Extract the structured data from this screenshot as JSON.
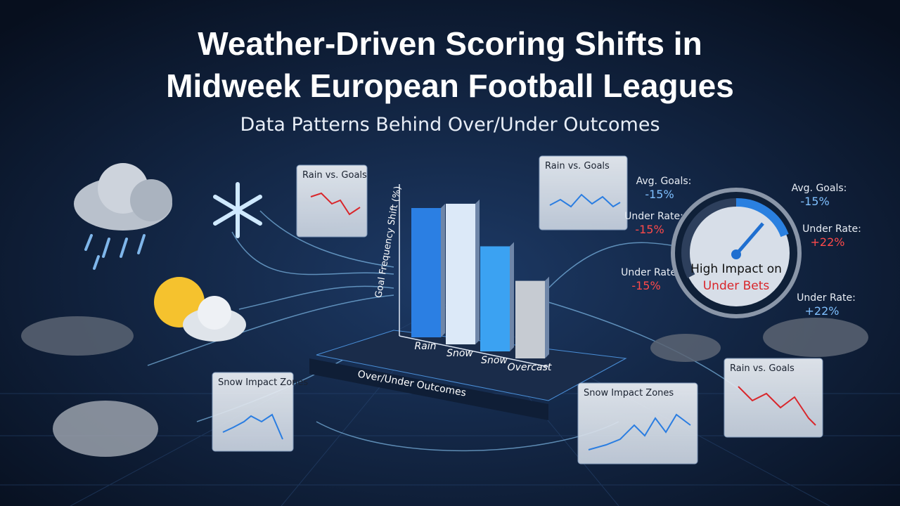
{
  "header": {
    "title_line1": "Weather-Driven Scoring Shifts in",
    "title_line2": "Midweek European Football Leagues",
    "subtitle": "Data Patterns Behind Over/Under Outcomes"
  },
  "main_chart": {
    "y_label": "Goal Frequency Shift (%)",
    "x_label": "Over/Under Outcomes",
    "categories": [
      "Rain",
      "Snow",
      "Snow",
      "Overcast"
    ],
    "values": [
      80,
      87,
      65,
      48
    ],
    "ylim": [
      0,
      100
    ],
    "colors": [
      "#2b7fe3",
      "#dce9f8",
      "#3ba2f2",
      "#c6cbd2"
    ]
  },
  "panels": [
    {
      "title": "Rain vs. Goals"
    },
    {
      "title": "Rain vs. Goals"
    },
    {
      "title": "Rain vs. Goals"
    },
    {
      "title": "Snow Impact Zones"
    },
    {
      "title": "Snow Impact Zones"
    }
  ],
  "stats": [
    {
      "label": "Avg. Goals:",
      "value": "-15%"
    },
    {
      "label": "Under Rate:",
      "value": "-15%"
    },
    {
      "label": "Under Rate:",
      "value": "-15%"
    },
    {
      "label": "Avg. Goals:",
      "value": "-15%"
    },
    {
      "label": "Under Rate:",
      "value": "+22%"
    },
    {
      "label": "Under Rate:",
      "value": "+22%"
    }
  ],
  "gauge": {
    "line1": "High Impact on",
    "line2": "Under Bets"
  }
}
